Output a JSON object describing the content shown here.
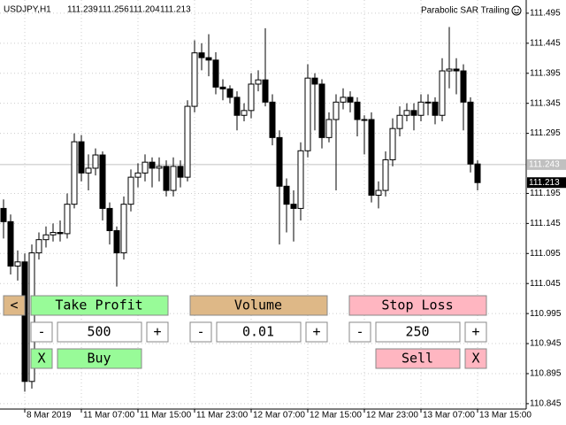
{
  "header": {
    "symbol": "USDJPY,H1",
    "ohlc": [
      111.239,
      111.256,
      111.204,
      111.213
    ],
    "indicator": "Parabolic SAR Trailing"
  },
  "chart_data": {
    "type": "candlestick",
    "categories": [
      null,
      null,
      null,
      "8 Mar 2019",
      null,
      null,
      null,
      null,
      null,
      null,
      null,
      "11 Mar 07:00",
      null,
      null,
      null,
      null,
      null,
      null,
      null,
      "11 Mar 15:00",
      null,
      null,
      null,
      null,
      null,
      null,
      null,
      "11 Mar 23:00",
      null,
      null,
      null,
      null,
      null,
      null,
      null,
      "12 Mar 07:00",
      null,
      null,
      null,
      null,
      null,
      null,
      null,
      "12 Mar 15:00",
      null,
      null,
      null,
      null,
      null,
      null,
      null,
      "12 Mar 23:00",
      null,
      null,
      null,
      null,
      null,
      null,
      null,
      "13 Mar 07:00",
      null,
      null,
      null,
      null,
      null,
      null,
      null,
      "13 Mar 15:00"
    ],
    "open": [
      111.17,
      111.148,
      111.074,
      111.081,
      110.882,
      111.096,
      111.118,
      111.126,
      111.13,
      111.128,
      111.177,
      111.281,
      111.229,
      111.237,
      111.259,
      111.17,
      111.133,
      111.096,
      111.177,
      111.222,
      111.229,
      111.247,
      111.237,
      111.24,
      111.2,
      111.24,
      111.222,
      111.34,
      111.429,
      111.421,
      111.417,
      111.372,
      111.369,
      111.355,
      111.325,
      111.333,
      111.377,
      111.384,
      111.347,
      111.288,
      111.207,
      111.177,
      111.17,
      111.266,
      111.387,
      111.377,
      111.288,
      111.318,
      111.347,
      111.355,
      111.347,
      111.318,
      111.318,
      111.192,
      111.2,
      111.251,
      111.303,
      111.325,
      111.333,
      111.325,
      111.347,
      111.347,
      111.325,
      111.399,
      111.402,
      111.399,
      111.347,
      111.244
    ],
    "high": [
      111.185,
      111.16,
      111.1,
      111.095,
      111.11,
      111.13,
      111.14,
      111.145,
      111.15,
      111.195,
      111.295,
      111.292,
      111.26,
      111.27,
      111.265,
      111.18,
      111.14,
      111.19,
      111.235,
      111.245,
      111.26,
      111.255,
      111.255,
      111.25,
      111.255,
      111.25,
      111.35,
      111.45,
      111.445,
      111.46,
      111.43,
      111.385,
      111.375,
      111.365,
      111.345,
      111.395,
      111.4,
      111.47,
      111.36,
      111.3,
      111.22,
      111.2,
      111.28,
      111.41,
      111.395,
      111.385,
      111.33,
      111.36,
      111.37,
      111.365,
      111.355,
      111.325,
      111.33,
      111.215,
      111.265,
      111.32,
      111.34,
      111.345,
      111.345,
      111.36,
      111.36,
      111.355,
      111.42,
      111.472,
      111.42,
      111.41,
      111.355,
      111.25
    ],
    "low": [
      111.12,
      111.06,
      111.05,
      110.865,
      110.87,
      111.085,
      111.105,
      111.115,
      111.115,
      111.12,
      111.17,
      111.215,
      111.2,
      111.225,
      111.15,
      111.11,
      111.04,
      111.085,
      111.165,
      111.205,
      111.215,
      111.205,
      111.215,
      111.19,
      111.19,
      111.205,
      111.215,
      111.33,
      111.4,
      111.39,
      111.36,
      111.35,
      111.345,
      111.3,
      111.315,
      111.32,
      111.365,
      111.34,
      111.275,
      111.11,
      111.13,
      111.115,
      111.15,
      111.255,
      111.3,
      111.27,
      111.28,
      111.2,
      111.335,
      111.33,
      111.29,
      111.26,
      111.18,
      111.17,
      111.19,
      111.24,
      111.29,
      111.315,
      111.3,
      111.315,
      111.325,
      111.31,
      111.315,
      111.37,
      111.36,
      111.3,
      111.23,
      111.2
    ],
    "close": [
      111.148,
      111.074,
      111.081,
      110.882,
      111.096,
      111.118,
      111.126,
      111.13,
      111.128,
      111.177,
      111.281,
      111.229,
      111.237,
      111.259,
      111.17,
      111.133,
      111.096,
      111.177,
      111.222,
      111.229,
      111.247,
      111.237,
      111.24,
      111.2,
      111.24,
      111.222,
      111.34,
      111.429,
      111.421,
      111.417,
      111.372,
      111.369,
      111.355,
      111.325,
      111.333,
      111.377,
      111.384,
      111.347,
      111.288,
      111.207,
      111.177,
      111.17,
      111.266,
      111.387,
      111.377,
      111.288,
      111.318,
      111.347,
      111.355,
      111.347,
      111.318,
      111.318,
      111.192,
      111.2,
      111.251,
      111.303,
      111.325,
      111.333,
      111.325,
      111.347,
      111.347,
      111.325,
      111.399,
      111.402,
      111.399,
      111.347,
      111.244,
      111.213
    ],
    "ylim": [
      110.836,
      111.517
    ],
    "yticks": [
      111.495,
      111.445,
      111.395,
      111.345,
      111.295,
      111.195,
      111.145,
      111.095,
      111.045,
      110.995,
      110.945,
      110.895,
      110.845
    ],
    "price_lines": [
      111.243,
      111.213
    ],
    "grid": true
  },
  "panel": {
    "toggle": "<",
    "take_profit": {
      "label": "Take Profit",
      "minus": "-",
      "value": "500",
      "plus": "+",
      "close": "X",
      "action": "Buy"
    },
    "volume": {
      "label": "Volume",
      "minus": "-",
      "value": "0.01",
      "plus": "+"
    },
    "stop_loss": {
      "label": "Stop Loss",
      "minus": "-",
      "value": "250",
      "plus": "+",
      "close": "X",
      "action": "Sell"
    }
  }
}
